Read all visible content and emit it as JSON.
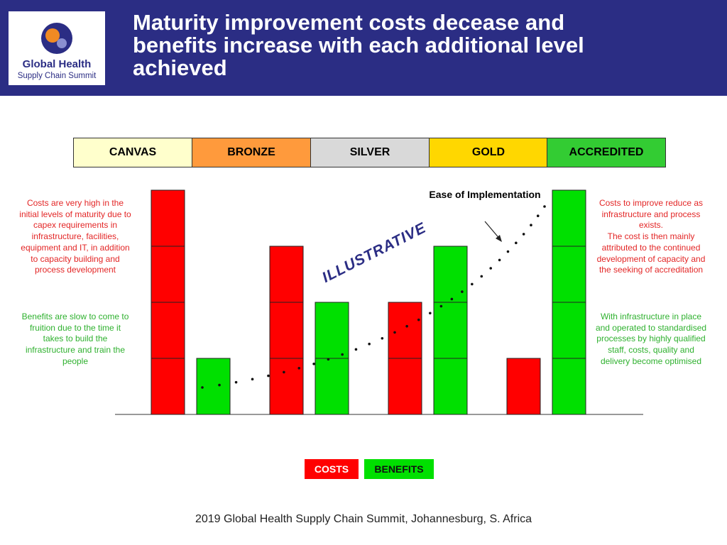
{
  "header": {
    "title": "Maturity improvement costs decease and benefits increase with each additional level achieved",
    "logo_line1": "Global Health",
    "logo_line2": "Supply Chain Summit"
  },
  "levels": [
    "CANVAS",
    "BRONZE",
    "SILVER",
    "GOLD",
    "ACCREDITED"
  ],
  "notes": {
    "left_costs": "Costs are very high in the initial levels of maturity due to capex requirements in infrastructure, facilities, equipment and IT, in addition to capacity building and process development",
    "left_benefits": "Benefits are slow to come to fruition due to the time it takes to build the infrastructure and train the people",
    "right_costs": [
      "Costs to improve reduce as infrastructure and process exists.",
      "The cost is then mainly attributed to the continued development of capacity and the seeking of accreditation"
    ],
    "right_benefits": "With infrastructure in place and operated to standardised processes by highly qualified staff, costs, quality and delivery become optimised"
  },
  "chart_data": {
    "type": "bar",
    "categories": [
      null,
      null,
      null,
      null
    ],
    "series": [
      {
        "name": "COSTS",
        "color": "#ff0000",
        "values": [
          4,
          3,
          2,
          1
        ]
      },
      {
        "name": "BENEFITS",
        "color": "#00e000",
        "values": [
          1,
          2,
          3,
          4
        ]
      }
    ],
    "ylim": [
      0,
      4
    ],
    "annotations": [
      "Ease of Implementation",
      "ILLUSTRATIVE"
    ]
  },
  "footer": "2019 Global Health Supply Chain Summit, Johannesburg, S. Africa"
}
